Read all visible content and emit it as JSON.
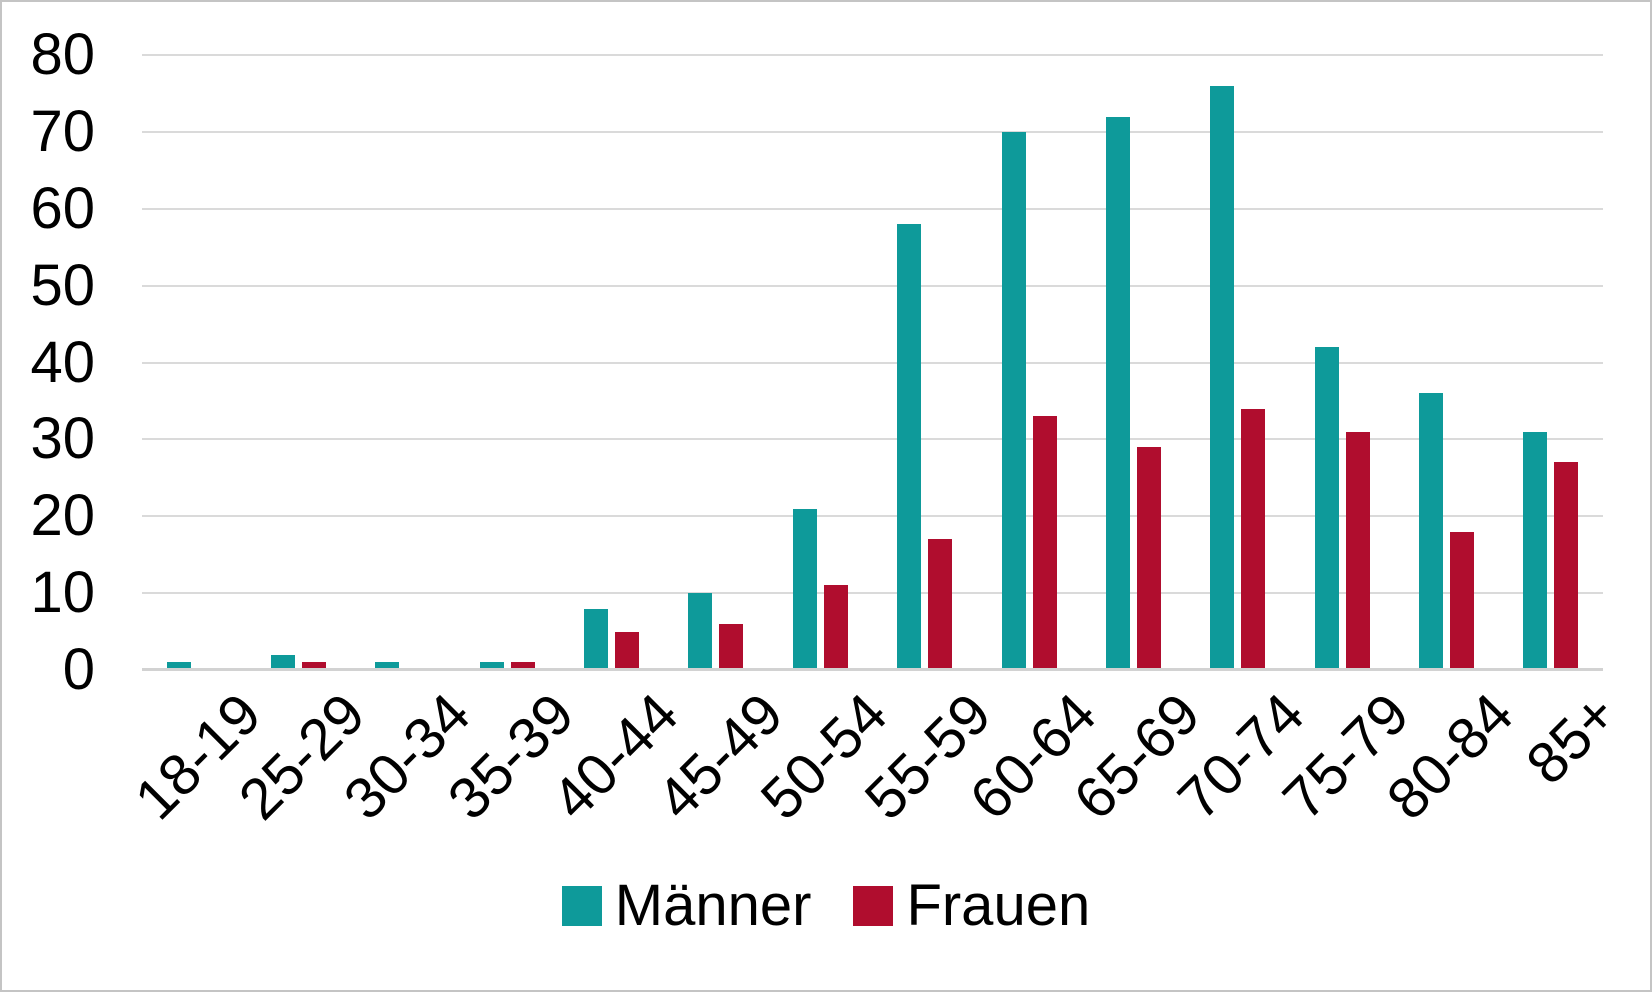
{
  "chart_data": {
    "type": "bar",
    "title": "",
    "categories": [
      "18-19",
      "25-29",
      "30-34",
      "35-39",
      "40-44",
      "45-49",
      "50-54",
      "55-59",
      "60-64",
      "65-69",
      "70-74",
      "75-79",
      "80-84",
      "85+"
    ],
    "series": [
      {
        "name": "Männer",
        "color": "#0E9A9A",
        "values": [
          1,
          2,
          1,
          1,
          8,
          10,
          21,
          58,
          70,
          72,
          76,
          42,
          36,
          31
        ]
      },
      {
        "name": "Frauen",
        "color": "#B00D2E",
        "values": [
          0,
          1,
          0,
          1,
          5,
          6,
          11,
          17,
          33,
          29,
          34,
          31,
          18,
          27
        ]
      }
    ],
    "xlabel": "",
    "ylabel": "",
    "ylim": [
      0,
      80
    ],
    "ytick_step": 10,
    "y_tick_labels": [
      "0",
      "10",
      "20",
      "30",
      "40",
      "50",
      "60",
      "70",
      "80"
    ],
    "grid": true,
    "legend_position": "bottom"
  },
  "colors": {
    "background": "#FFFFFF",
    "frame_border": "#C4C4C4",
    "gridline": "#DADADA",
    "axis_line": "#D2D2D2",
    "text": "#000000"
  }
}
